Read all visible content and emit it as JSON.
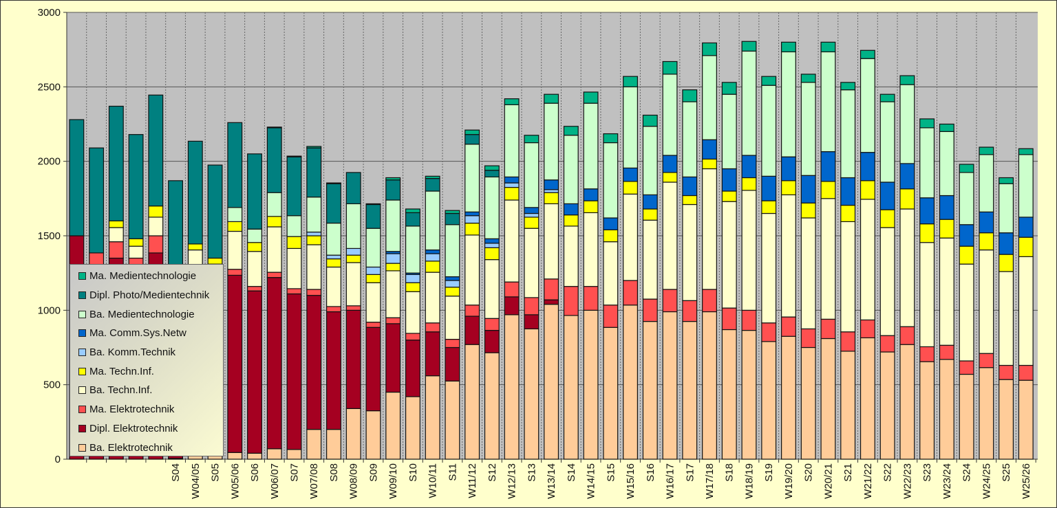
{
  "chart_data": {
    "type": "bar",
    "stacked": true,
    "title": "",
    "xlabel": "",
    "ylabel": "",
    "ylim": [
      0,
      3000
    ],
    "yticks": [
      0,
      500,
      1000,
      1500,
      2000,
      2500,
      3000
    ],
    "grid": true,
    "legend_placement": "bottom-left",
    "categories": [
      "",
      "",
      "",
      "",
      "",
      "S04",
      "W04/05",
      "S05",
      "W05/06",
      "S06",
      "W06/07",
      "S07",
      "W07/08",
      "S08",
      "W08/09",
      "S09",
      "W09/10",
      "S10",
      "W10/11",
      "S11",
      "W11/12",
      "S12",
      "W12/13",
      "S13",
      "W13/14",
      "S14",
      "W14/15",
      "S15",
      "W15/16",
      "S16",
      "W16/17",
      "S17",
      "W17/18",
      "S18",
      "W18/19",
      "S19",
      "W19/20",
      "S20",
      "W20/21",
      "S21",
      "W21/22",
      "S22",
      "W22/23",
      "S23",
      "W23/24",
      "S24",
      "W24/25",
      "S25",
      "W25/26"
    ],
    "series": [
      {
        "name": "Ba. Elektrotechnik",
        "color": "#FFCC99",
        "values": [
          0,
          0,
          0,
          0,
          0,
          5,
          25,
          25,
          45,
          40,
          70,
          65,
          200,
          200,
          340,
          325,
          450,
          420,
          560,
          525,
          770,
          715,
          970,
          875,
          1040,
          965,
          1000,
          885,
          1035,
          925,
          990,
          925,
          990,
          870,
          865,
          790,
          825,
          750,
          810,
          725,
          815,
          720,
          770,
          655,
          670,
          570,
          615,
          535,
          530
        ]
      },
      {
        "name": "Dipl. Elektrotechnik",
        "color": "#A50021",
        "values": [
          1500,
          1270,
          1350,
          1240,
          1385,
          1065,
          1175,
          1100,
          1190,
          1090,
          1150,
          1045,
          900,
          790,
          660,
          560,
          460,
          380,
          295,
          225,
          190,
          150,
          120,
          95,
          30,
          0,
          0,
          0,
          0,
          0,
          0,
          0,
          0,
          0,
          0,
          0,
          0,
          0,
          0,
          0,
          0,
          0,
          0,
          0,
          0,
          0,
          0,
          0,
          0
        ]
      },
      {
        "name": "Ma. Elektrotechnik",
        "color": "#FF5050",
        "values": [
          0,
          115,
          110,
          110,
          115,
          40,
          40,
          30,
          40,
          30,
          35,
          35,
          40,
          35,
          30,
          35,
          40,
          45,
          60,
          55,
          75,
          80,
          100,
          115,
          140,
          195,
          160,
          150,
          165,
          150,
          150,
          140,
          150,
          145,
          135,
          125,
          130,
          125,
          130,
          130,
          120,
          110,
          120,
          100,
          95,
          90,
          95,
          95,
          100
        ]
      },
      {
        "name": "Ba. Techn.Inf.",
        "color": "#FFFFCC",
        "values": [
          0,
          0,
          95,
          80,
          125,
          125,
          165,
          155,
          255,
          235,
          305,
          270,
          300,
          265,
          290,
          265,
          315,
          280,
          340,
          290,
          470,
          395,
          550,
          465,
          505,
          405,
          495,
          425,
          580,
          530,
          720,
          645,
          810,
          715,
          805,
          735,
          820,
          745,
          810,
          740,
          810,
          725,
          790,
          700,
          720,
          650,
          695,
          630,
          730
        ]
      },
      {
        "name": "Ma. Techn.Inf.",
        "color": "#FFFF00",
        "values": [
          0,
          0,
          45,
          50,
          75,
          25,
          40,
          40,
          65,
          60,
          70,
          80,
          60,
          55,
          50,
          55,
          50,
          60,
          75,
          60,
          80,
          80,
          85,
          75,
          75,
          75,
          80,
          80,
          85,
          75,
          65,
          60,
          65,
          70,
          85,
          85,
          95,
          100,
          115,
          110,
          125,
          120,
          135,
          125,
          125,
          120,
          115,
          115,
          130
        ]
      },
      {
        "name": "Ba. Komm.Technik",
        "color": "#99CCFF",
        "values": [
          0,
          0,
          0,
          0,
          0,
          0,
          0,
          0,
          0,
          0,
          0,
          0,
          25,
          25,
          45,
          50,
          65,
          55,
          50,
          45,
          50,
          30,
          30,
          25,
          20,
          0,
          0,
          0,
          0,
          0,
          0,
          0,
          0,
          0,
          0,
          0,
          0,
          0,
          0,
          0,
          0,
          0,
          0,
          0,
          0,
          0,
          0,
          0,
          0
        ]
      },
      {
        "name": "Ma. Comm.Sys.Netw",
        "color": "#0066CC",
        "values": [
          0,
          0,
          0,
          0,
          0,
          0,
          0,
          0,
          0,
          0,
          0,
          0,
          0,
          0,
          0,
          0,
          15,
          10,
          25,
          25,
          25,
          30,
          40,
          40,
          65,
          75,
          80,
          80,
          90,
          95,
          115,
          125,
          130,
          150,
          150,
          165,
          160,
          185,
          200,
          185,
          190,
          185,
          170,
          175,
          160,
          145,
          140,
          145,
          135
        ]
      },
      {
        "name": "Ba. Medientechnologie",
        "color": "#CCFFCC",
        "values": [
          0,
          0,
          0,
          0,
          0,
          0,
          0,
          0,
          95,
          90,
          160,
          140,
          235,
          215,
          300,
          260,
          345,
          315,
          395,
          350,
          455,
          415,
          485,
          435,
          515,
          460,
          575,
          505,
          545,
          460,
          545,
          505,
          565,
          500,
          700,
          610,
          705,
          625,
          670,
          590,
          630,
          540,
          530,
          470,
          430,
          350,
          385,
          330,
          420
        ]
      },
      {
        "name": "Dipl. Photo/Medientechnik",
        "color": "#008080",
        "values": [
          780,
          705,
          770,
          700,
          745,
          610,
          690,
          625,
          570,
          505,
          435,
          395,
          330,
          265,
          210,
          160,
          135,
          90,
          85,
          75,
          65,
          45,
          0,
          0,
          0,
          0,
          0,
          0,
          0,
          0,
          0,
          0,
          0,
          0,
          0,
          0,
          0,
          0,
          0,
          0,
          0,
          0,
          0,
          0,
          0,
          0,
          0,
          0,
          0
        ]
      },
      {
        "name": "Ma. Medientechnologie",
        "color": "#00B386",
        "values": [
          0,
          0,
          0,
          0,
          0,
          0,
          0,
          0,
          0,
          0,
          5,
          5,
          10,
          5,
          0,
          5,
          15,
          25,
          15,
          20,
          30,
          30,
          40,
          50,
          60,
          60,
          75,
          60,
          70,
          75,
          85,
          80,
          85,
          80,
          65,
          60,
          65,
          55,
          65,
          50,
          55,
          50,
          60,
          60,
          50,
          55,
          50,
          40,
          40
        ]
      }
    ]
  },
  "legend_order": [
    9,
    8,
    7,
    6,
    5,
    4,
    3,
    2,
    1,
    0
  ]
}
